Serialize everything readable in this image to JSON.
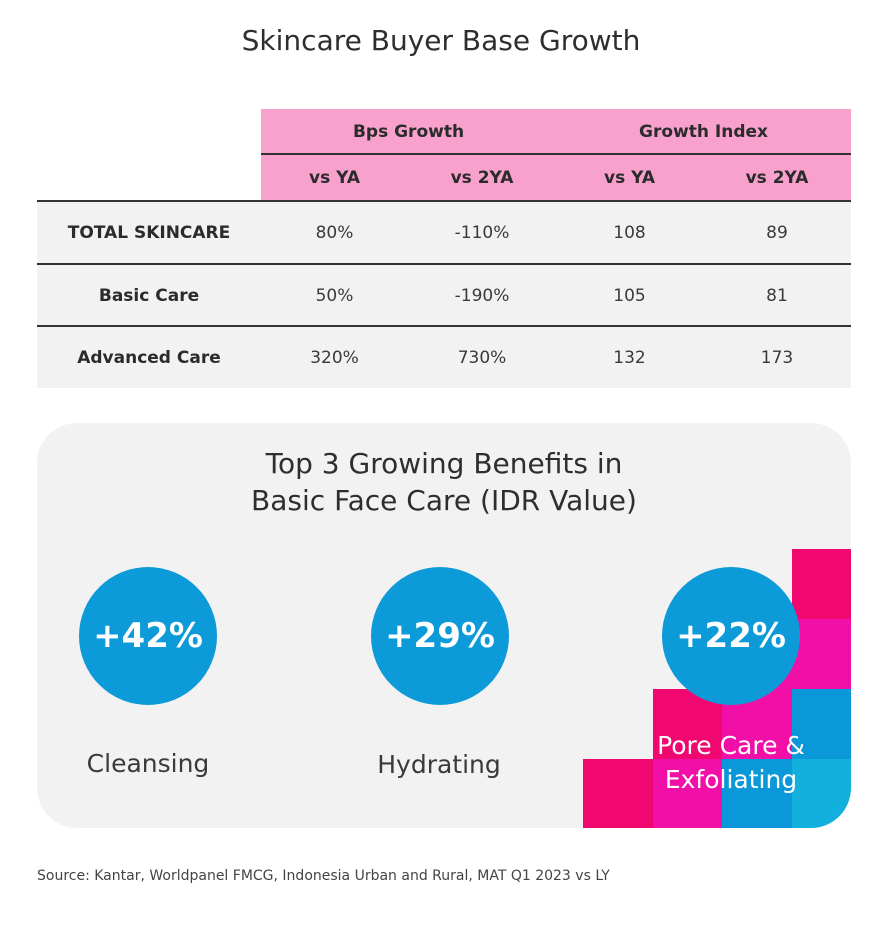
{
  "title": "Skincare Buyer Base Growth",
  "chart_data": [
    {
      "type": "table",
      "column_groups": [
        {
          "label": "Bps Growth",
          "columns": [
            "vs YA",
            "vs 2YA"
          ]
        },
        {
          "label": "Growth Index",
          "columns": [
            "vs YA",
            "vs 2YA"
          ]
        }
      ],
      "rows": [
        {
          "label": "TOTAL SKINCARE",
          "values": [
            "80%",
            "-110%",
            "108",
            "89"
          ]
        },
        {
          "label": "Basic Care",
          "values": [
            "50%",
            "-190%",
            "105",
            "81"
          ]
        },
        {
          "label": "Advanced Care",
          "values": [
            "320%",
            "730%",
            "132",
            "173"
          ]
        }
      ]
    },
    {
      "type": "bar",
      "title_line1": "Top 3 Growing Benefits in",
      "title_line2": "Basic Face Care (IDR Value)",
      "categories": [
        "Cleansing",
        "Hydrating",
        "Pore Care & Exfoliating"
      ],
      "category_lines": [
        [
          "Cleansing"
        ],
        [
          "Hydrating"
        ],
        [
          "Pore Care &",
          "Exfoliating"
        ]
      ],
      "labels": [
        "+42%",
        "+29%",
        "+22%"
      ],
      "values": [
        42,
        29,
        22
      ]
    }
  ],
  "source": "Source: Kantar, Worldpanel FMCG, Indonesia Urban and Rural, MAT Q1 2023 vs LY",
  "colors": {
    "header_pink": "#f7a1cc",
    "circle_blue": "#0d9ad8",
    "block_magenta": "#f0076f",
    "block_pink": "#f20fa8",
    "block_blue": "#0a98d8",
    "block_cyan": "#12b0dc"
  }
}
